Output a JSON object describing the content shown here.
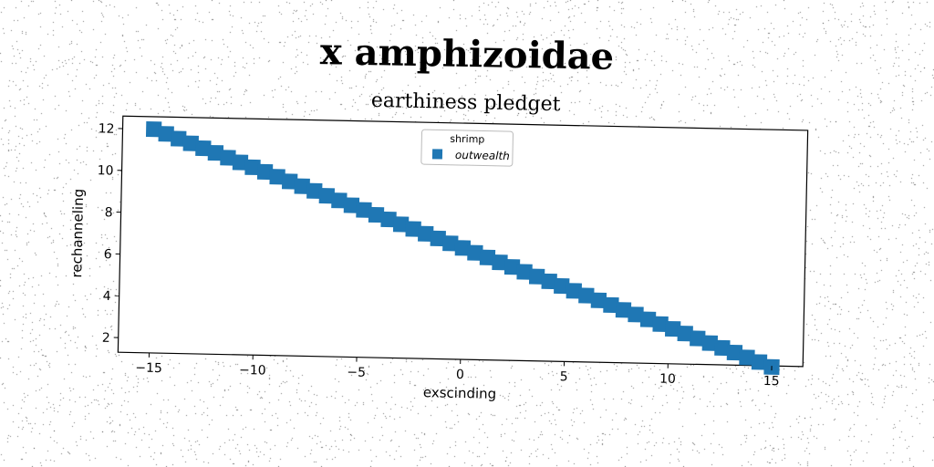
{
  "suptitle": "x amphizoidae",
  "chart_data": {
    "type": "scatter",
    "title": "earthiness pledget",
    "xlabel": "exscinding",
    "ylabel": "rechanneling",
    "xlim": [
      -16.5,
      16.5
    ],
    "ylim": [
      1.3,
      12.6
    ],
    "xticks": [
      -15,
      -10,
      -5,
      0,
      5,
      10,
      15
    ],
    "yticks": [
      2,
      4,
      6,
      8,
      10,
      12
    ],
    "grid": false,
    "legend": {
      "title": "shrimp",
      "placement": "top-center"
    },
    "series": [
      {
        "name": "outwealth",
        "color": "#1f77b4",
        "marker": "square",
        "x": [
          -15.0,
          -14.4,
          -13.8,
          -13.2,
          -12.6,
          -12.0,
          -11.4,
          -10.8,
          -10.2,
          -9.6,
          -9.0,
          -8.4,
          -7.8,
          -7.2,
          -6.6,
          -6.0,
          -5.4,
          -4.8,
          -4.2,
          -3.6,
          -3.0,
          -2.4,
          -1.8,
          -1.2,
          -0.6,
          0.0,
          0.6,
          1.2,
          1.8,
          2.4,
          3.0,
          3.6,
          4.2,
          4.8,
          5.4,
          6.0,
          6.6,
          7.2,
          7.8,
          8.4,
          9.0,
          9.6,
          10.2,
          10.8,
          11.4,
          12.0,
          12.6,
          13.2,
          13.8,
          14.4,
          15.0
        ],
        "y": [
          12.0,
          11.79,
          11.57,
          11.36,
          11.14,
          10.93,
          10.71,
          10.5,
          10.28,
          10.07,
          9.85,
          9.64,
          9.42,
          9.21,
          8.99,
          8.78,
          8.56,
          8.35,
          8.13,
          7.92,
          7.7,
          7.49,
          7.27,
          7.06,
          6.84,
          6.63,
          6.41,
          6.2,
          5.98,
          5.77,
          5.55,
          5.34,
          5.12,
          4.91,
          4.69,
          4.48,
          4.26,
          4.05,
          3.83,
          3.62,
          3.4,
          3.19,
          2.97,
          2.76,
          2.54,
          2.33,
          2.11,
          1.9,
          1.68,
          1.47,
          1.25
        ]
      }
    ]
  }
}
